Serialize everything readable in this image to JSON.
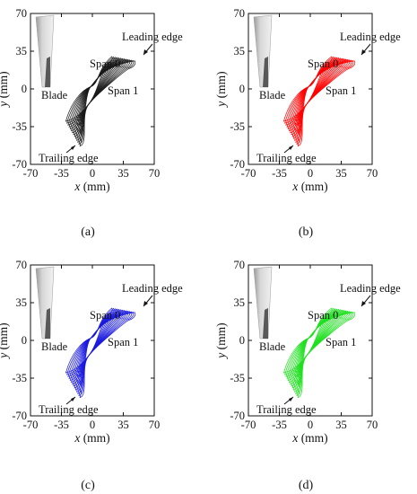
{
  "figure": {
    "panels": [
      {
        "id": "a",
        "caption": "(a)",
        "color": "#1a1a1a"
      },
      {
        "id": "b",
        "caption": "(b)",
        "color": "#ff0000"
      },
      {
        "id": "c",
        "caption": "(c)",
        "color": "#1a1adf"
      },
      {
        "id": "d",
        "caption": "(d)",
        "color": "#1fe01f"
      }
    ],
    "axes": {
      "x_label_var": "x",
      "x_label_unit": " (mm)",
      "y_label_var": "y",
      "y_label_unit": " (mm)",
      "x_ticks": [
        "-70",
        "-35",
        "0",
        "35",
        "70"
      ],
      "y_ticks": [
        "70",
        "35",
        "0",
        "-35",
        "-70"
      ],
      "range": [
        -70,
        70
      ]
    },
    "annotations": {
      "leading_edge": "Leading edge",
      "trailing_edge": "Trailing edge",
      "span0": "Span 0",
      "span1": "Span 1",
      "blade": "Blade"
    }
  }
}
